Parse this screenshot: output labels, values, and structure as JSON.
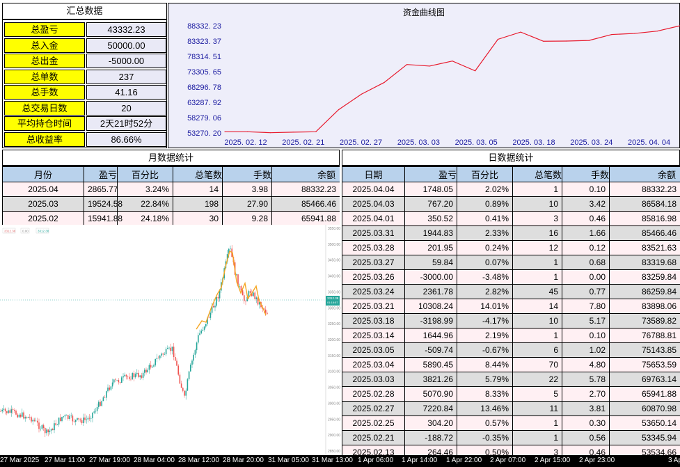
{
  "summary": {
    "title": "汇总数据",
    "rows": [
      {
        "label": "总盈亏",
        "value": "43332.23"
      },
      {
        "label": "总入金",
        "value": "50000.00"
      },
      {
        "label": "总出金",
        "value": "-5000.00"
      },
      {
        "label": "总单数",
        "value": "237"
      },
      {
        "label": "总手数",
        "value": "41.16"
      },
      {
        "label": "总交易日数",
        "value": "20"
      },
      {
        "label": "平均持仓时间",
        "value": "2天21时52分"
      },
      {
        "label": "总收益率",
        "value": "86.66%"
      }
    ]
  },
  "equity_chart": {
    "title": "资金曲线图",
    "y_ticks": [
      "88332. 23",
      "83323. 37",
      "78314. 51",
      "73305. 65",
      "68296. 78",
      "63287. 92",
      "58279. 06",
      "53270. 20"
    ],
    "x_ticks": [
      "2025. 02. 12",
      "2025. 02. 21",
      "2025. 02. 27",
      "2025. 03. 03",
      "2025. 03. 05",
      "2025. 03. 18",
      "2025. 03. 24",
      "2025. 04. 04"
    ],
    "line_color": "#e8192c"
  },
  "chart_data": {
    "type": "line",
    "title": "资金曲线图",
    "xlabel": "",
    "ylabel": "",
    "ylim": [
      53270.2,
      88332.23
    ],
    "series": [
      {
        "values": [
          53650.14,
          53650.14,
          53345.94,
          53534.66,
          53650.14,
          60870.98,
          65941.88,
          69763.14,
          75653.59,
          75143.85,
          76788.81,
          73589.82,
          83898.06,
          86259.84,
          83259.84,
          83319.68,
          83521.63,
          85466.46,
          85816.98,
          86584.18,
          88332.23
        ]
      }
    ]
  },
  "monthly": {
    "title": "月数据统计",
    "headers": [
      "月份",
      "盈亏",
      "百分比",
      "总笔数",
      "手数",
      "余额"
    ],
    "rows": [
      [
        "2025.04",
        "2865.77",
        "3.24%",
        "14",
        "3.98",
        "88332.23"
      ],
      [
        "2025.03",
        "19524.58",
        "22.84%",
        "198",
        "27.90",
        "85466.46"
      ],
      [
        "2025.02",
        "15941.88",
        "24.18%",
        "30",
        "9.28",
        "65941.88"
      ]
    ]
  },
  "daily": {
    "title": "日数据统计",
    "headers": [
      "日期",
      "盈亏",
      "百分比",
      "总笔数",
      "手数",
      "余额"
    ],
    "rows": [
      [
        "2025.04.04",
        "1748.05",
        "2.02%",
        "1",
        "0.10",
        "88332.23"
      ],
      [
        "2025.04.03",
        "767.20",
        "0.89%",
        "10",
        "3.42",
        "86584.18"
      ],
      [
        "2025.04.01",
        "350.52",
        "0.41%",
        "3",
        "0.46",
        "85816.98"
      ],
      [
        "2025.03.31",
        "1944.83",
        "2.33%",
        "16",
        "1.66",
        "85466.46"
      ],
      [
        "2025.03.28",
        "201.95",
        "0.24%",
        "12",
        "0.12",
        "83521.63"
      ],
      [
        "2025.03.27",
        "59.84",
        "0.07%",
        "1",
        "0.68",
        "83319.68"
      ],
      [
        "2025.03.26",
        "-3000.00",
        "-3.48%",
        "1",
        "0.00",
        "83259.84"
      ],
      [
        "2025.03.24",
        "2361.78",
        "2.82%",
        "45",
        "0.77",
        "86259.84"
      ],
      [
        "2025.03.21",
        "10308.24",
        "14.01%",
        "14",
        "7.80",
        "83898.06"
      ],
      [
        "2025.03.18",
        "-3198.99",
        "-4.17%",
        "10",
        "5.17",
        "73589.82"
      ],
      [
        "2025.03.14",
        "1644.96",
        "2.19%",
        "1",
        "0.10",
        "76788.81"
      ],
      [
        "2025.03.05",
        "-509.74",
        "-0.67%",
        "6",
        "1.02",
        "75143.85"
      ],
      [
        "2025.03.04",
        "5890.45",
        "8.44%",
        "70",
        "4.80",
        "75653.59"
      ],
      [
        "2025.03.03",
        "3821.26",
        "5.79%",
        "22",
        "5.78",
        "69763.14"
      ],
      [
        "2025.02.28",
        "5070.90",
        "8.33%",
        "5",
        "2.70",
        "65941.88"
      ],
      [
        "2025.02.27",
        "7220.84",
        "13.46%",
        "11",
        "3.81",
        "60870.98"
      ],
      [
        "2025.02.25",
        "304.20",
        "0.57%",
        "1",
        "0.30",
        "53650.14"
      ],
      [
        "2025.02.21",
        "-188.72",
        "-0.35%",
        "1",
        "0.56",
        "53345.94"
      ],
      [
        "2025.02.13",
        "264.46",
        "0.50%",
        "3",
        "0.46",
        "53534.66"
      ]
    ]
  },
  "price_chart": {
    "legend": [
      "3312.38",
      "0.00",
      "3312.38"
    ],
    "y_ticks": [
      "3550.00",
      "3500.00",
      "3450.00",
      "3400.00",
      "3350.00",
      "3300.00",
      "3250.00",
      "3200.00",
      "3150.00",
      "3100.00",
      "3050.00",
      "3000.00",
      "2950.00",
      "2900.00",
      "2850.00"
    ],
    "last_price_tag": "3312.38",
    "last_price_sub": "01:18:57",
    "up_color": "#26a69a",
    "down_color": "#ef5350",
    "ma_color": "#f5a623"
  },
  "time_axis": [
    "27 Mar 2025",
    "27 Mar 11:00",
    "27 Mar 19:00",
    "28 Mar 04:00",
    "28 Mar 12:00",
    "28 Mar 20:00",
    "31 Mar 05:00",
    "31 Mar 13:00",
    "1 Apr 06:00",
    "1 Apr 14:00",
    "1 Apr 22:00",
    "2 Apr 07:00",
    "2 Apr 15:00",
    "2 Apr 23:00",
    "3 Ap"
  ]
}
